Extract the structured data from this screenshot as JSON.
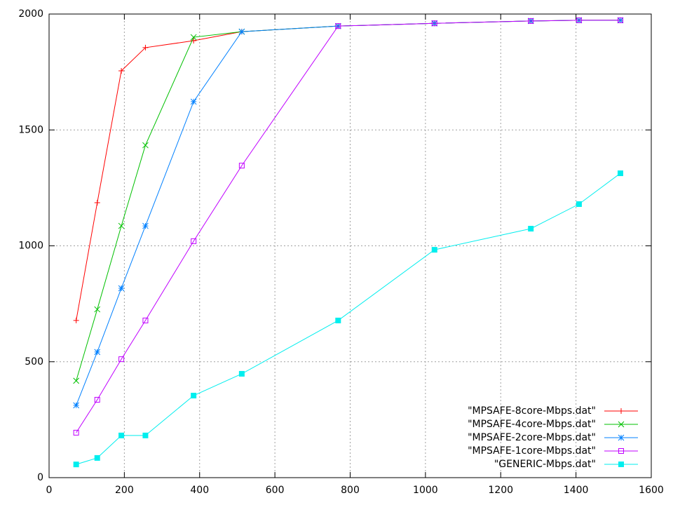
{
  "chart_data": {
    "type": "line",
    "x": [
      72,
      128,
      192,
      256,
      384,
      512,
      768,
      1024,
      1280,
      1408,
      1518
    ],
    "xlim": [
      0,
      1600
    ],
    "xticks": [
      0,
      200,
      400,
      600,
      800,
      1000,
      1200,
      1400,
      1600
    ],
    "ylim": [
      0,
      2000
    ],
    "yticks": [
      0,
      500,
      1000,
      1500,
      2000
    ],
    "grid": true,
    "legend": "bottom-right",
    "series": [
      {
        "name": "\"MPSAFE-8core-Mbps.dat\"",
        "color": "#ff0000",
        "marker": "plus",
        "values": [
          678,
          1186,
          1755,
          1855,
          1885,
          1924,
          1948,
          1960,
          1970,
          1973,
          1973
        ]
      },
      {
        "name": "\"MPSAFE-4core-Mbps.dat\"",
        "color": "#00c000",
        "marker": "cross",
        "values": [
          418,
          726,
          1086,
          1434,
          1900,
          1924,
          1948,
          1960,
          1970,
          1973,
          1973
        ]
      },
      {
        "name": "\"MPSAFE-2core-Mbps.dat\"",
        "color": "#0080ff",
        "marker": "star",
        "values": [
          312,
          542,
          817,
          1086,
          1622,
          1924,
          1948,
          1960,
          1970,
          1973,
          1973
        ]
      },
      {
        "name": "\"MPSAFE-1core-Mbps.dat\"",
        "color": "#c000ff",
        "marker": "box",
        "values": [
          194,
          336,
          511,
          678,
          1020,
          1346,
          1948,
          1960,
          1970,
          1973,
          1973
        ]
      },
      {
        "name": "\"GENERIC-Mbps.dat\"",
        "color": "#00eeee",
        "marker": "filledbox",
        "values": [
          57,
          85,
          182,
          182,
          354,
          448,
          678,
          983,
          1074,
          1180,
          1313
        ]
      }
    ]
  }
}
